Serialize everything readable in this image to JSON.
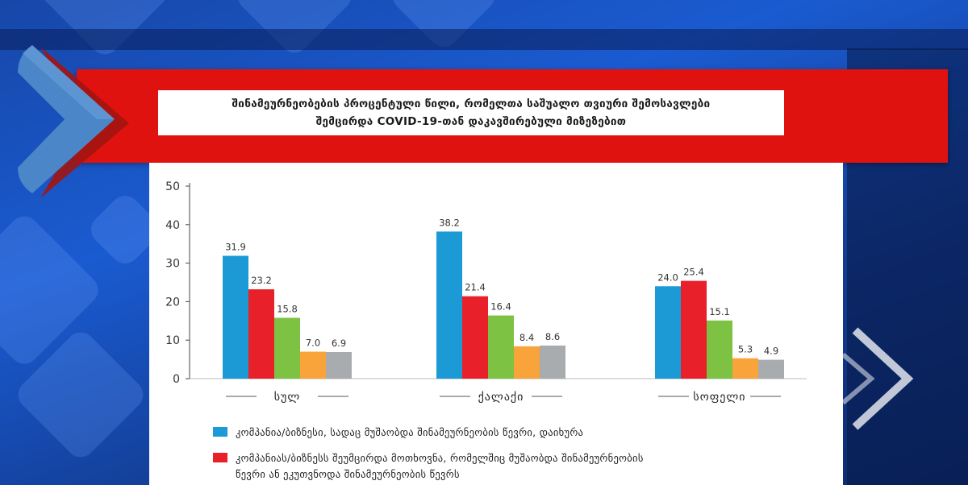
{
  "chart_data": {
    "type": "bar",
    "title": "შინამეურნეობების პროცენტული წილი, რომელთა საშუალო თვიური შემოსავლები შემცირდა COVID-19-თან დაკავშირებული მიზეზებით",
    "title_lines": [
      "შინამეურნეობების პროცენტული წილი, რომელთა საშუალო თვიური შემოსავლები",
      "შემცირდა COVID-19-თან დაკავშირებული მიზეზებით"
    ],
    "categories": [
      "სულ",
      "ქალაქი",
      "სოფელი"
    ],
    "ylim": [
      0,
      50
    ],
    "yticks": [
      0,
      10,
      20,
      30,
      40,
      50
    ],
    "grid": false,
    "legend_position": "bottom",
    "series": [
      {
        "name": "კომპანია/ბიზნესი, სადაც მუშაობდა შინამეურნეობის წევრი, დაიხურა",
        "color": "#1c9ad6",
        "values": [
          31.9,
          38.2,
          24.0
        ]
      },
      {
        "name": "კომპანიას/ბიზნესს შეუმცირდა მოთხოვნა, რომელშიც მუშაობდა შინამეურნეობის წევრი ან ეკუთვნოდა შინამეურნეობის წევრს",
        "color": "#e8202a",
        "values": [
          23.2,
          21.4,
          25.4
        ]
      },
      {
        "color": "#7dc242",
        "values": [
          15.8,
          16.4,
          15.1
        ]
      },
      {
        "color": "#f9a33b",
        "values": [
          7.0,
          8.4,
          5.3
        ]
      },
      {
        "color": "#a9acae",
        "values": [
          6.9,
          8.6,
          4.9
        ]
      }
    ],
    "value_labels": [
      [
        "31.9",
        "23.2",
        "15.8",
        "7.0",
        "6.9"
      ],
      [
        "38.2",
        "21.4",
        "16.4",
        "8.4",
        "8.6"
      ],
      [
        "24.0",
        "25.4",
        "15.1",
        "5.3",
        "4.9"
      ]
    ]
  },
  "legend": [
    {
      "color": "#1c9ad6",
      "lines": [
        "კომპანია/ბიზნესი, სადაც მუშაობდა შინამეურნეობის წევრი, დაიხურა"
      ]
    },
    {
      "color": "#e8202a",
      "lines": [
        "კომპანიას/ბიზნესს შეუმცირდა მოთხოვნა, რომელშიც მუშაობდა შინამეურნეობის",
        "წევრი ან ეკუთვნოდა შინამეურნეობის წევრს"
      ]
    }
  ]
}
